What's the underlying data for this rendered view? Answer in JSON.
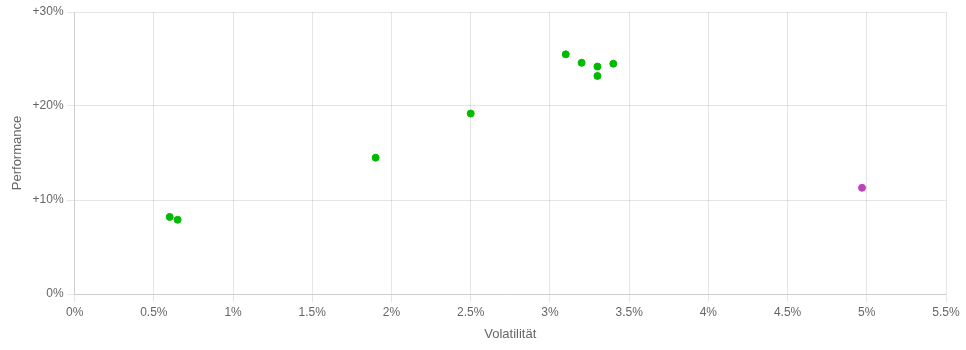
{
  "chart_data": {
    "type": "scatter",
    "x_label": "Volatilität",
    "y_label": "Performance",
    "series": [
      {
        "color": "#00bb00",
        "x": [
          0.006,
          0.0065,
          0.019,
          0.025,
          0.031,
          0.032,
          0.033,
          0.033,
          0.034
        ],
        "values": [
          0.082,
          0.079,
          0.145,
          0.192,
          0.255,
          0.246,
          0.242,
          0.232,
          0.245
        ]
      },
      {
        "color": "#bb44bb",
        "x": [
          0.0497
        ],
        "values": [
          0.113
        ]
      }
    ],
    "xlim": [
      0.0,
      0.055
    ],
    "ylim": [
      0.0,
      0.3
    ],
    "xticks": [
      {
        "value": 0.0,
        "label": "0%"
      },
      {
        "value": 0.005,
        "label": "0.5%"
      },
      {
        "value": 0.01,
        "label": "1%"
      },
      {
        "value": 0.015,
        "label": "1.5%"
      },
      {
        "value": 0.02,
        "label": "2%"
      },
      {
        "value": 0.025,
        "label": "2.5%"
      },
      {
        "value": 0.03,
        "label": "3%"
      },
      {
        "value": 0.035,
        "label": "3.5%"
      },
      {
        "value": 0.04,
        "label": "4%"
      },
      {
        "value": 0.045,
        "label": "4.5%"
      },
      {
        "value": 0.05,
        "label": "5%"
      },
      {
        "value": 0.055,
        "label": "5.5%"
      }
    ],
    "yticks": [
      {
        "value": 0.0,
        "label": "0%"
      },
      {
        "value": 0.1,
        "label": "+10%"
      },
      {
        "value": 0.2,
        "label": "+20%"
      },
      {
        "value": 0.3,
        "label": "+30%"
      }
    ],
    "grid": true
  }
}
